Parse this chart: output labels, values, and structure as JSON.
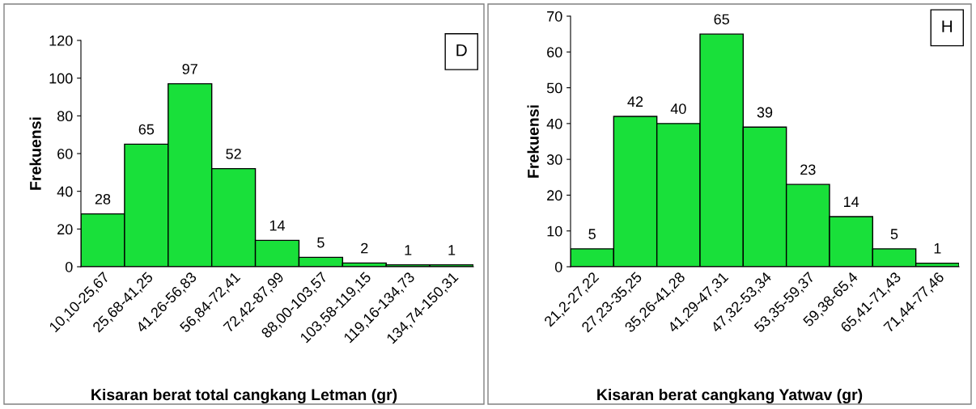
{
  "chart_data": [
    {
      "type": "bar",
      "xlabel": "Kisaran berat total cangkang Letman (gr)",
      "ylabel": "Frekuensi",
      "annotations": [
        "D"
      ],
      "categories": [
        "10,10-25,67",
        "25,68-41,25",
        "41,26-56,83",
        "56,84-72,41",
        "72,42-87,99",
        "88,00-103,57",
        "103,58-119,15",
        "119,16-134,73",
        "134,74-150,31"
      ],
      "values": [
        28,
        65,
        97,
        52,
        14,
        5,
        2,
        1,
        1
      ],
      "color": "#19e03a",
      "ylim": [
        0,
        120
      ],
      "yticks": [
        0,
        20,
        40,
        60,
        80,
        100,
        120
      ],
      "data_labels": true,
      "grid": false,
      "legend": false
    },
    {
      "type": "bar",
      "xlabel": "Kisaran berat cangkang Yatwav (gr)",
      "ylabel": "Frekuensi",
      "annotations": [
        "H"
      ],
      "categories": [
        "21,2-27,22",
        "27,23-35,25",
        "35,26-41,28",
        "41,29-47,31",
        "47,32-53,34",
        "53,35-59,37",
        "59,38-65,4",
        "65,41-71,43",
        "71,44-77,46"
      ],
      "values": [
        5,
        42,
        40,
        65,
        39,
        23,
        14,
        5,
        1
      ],
      "color": "#19e03a",
      "ylim": [
        0,
        70
      ],
      "yticks": [
        0,
        10,
        20,
        30,
        40,
        50,
        60,
        70
      ],
      "data_labels": true,
      "grid": false,
      "legend": false
    }
  ]
}
